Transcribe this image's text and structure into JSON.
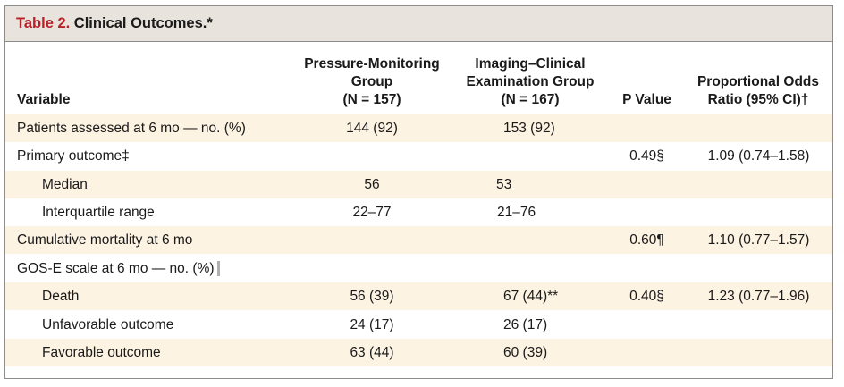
{
  "table": {
    "title_number": "Table 2.",
    "title_text": " Clinical Outcomes.*",
    "headers": {
      "variable": "Variable",
      "pressure_group_line1": "Pressure-Monitoring",
      "pressure_group_line2": "Group",
      "pressure_group_line3": "(N = 157)",
      "imaging_group_line1": "Imaging–Clinical",
      "imaging_group_line2": "Examination Group",
      "imaging_group_line3": "(N = 167)",
      "p_value": "P Value",
      "odds_line1": "Proportional Odds",
      "odds_line2": "Ratio (95% CI)†"
    },
    "rows": [
      {
        "label": "Patients assessed at 6 mo — no. (%)",
        "pressure": "144 (92)",
        "imaging": "153 (92)",
        "p": "",
        "odds": ""
      },
      {
        "label": "Primary outcome‡",
        "pressure": "",
        "imaging": "",
        "p": "0.49§",
        "odds": "1.09 (0.74–1.58)"
      },
      {
        "label": "Median",
        "pressure": "56",
        "imaging": "53",
        "p": "",
        "odds": ""
      },
      {
        "label": "Interquartile range",
        "pressure": "22–77",
        "imaging": "21–76",
        "p": "",
        "odds": ""
      },
      {
        "label": "Cumulative mortality at 6 mo",
        "pressure": "",
        "imaging": "",
        "p": "0.60¶",
        "odds": "1.10 (0.77–1.57)"
      },
      {
        "label": "GOS-E scale at 6 mo — no. (%)",
        "pressure": "",
        "imaging": "",
        "p": "",
        "odds": ""
      },
      {
        "label": "Death",
        "pressure": "56 (39)",
        "imaging": "67 (44)**",
        "p": "0.40§",
        "odds": "1.23 (0.77–1.96)"
      },
      {
        "label": "Unfavorable outcome",
        "pressure": "24 (17)",
        "imaging": "26 (17)",
        "p": "",
        "odds": ""
      },
      {
        "label": "Favorable outcome",
        "pressure": "63 (44)",
        "imaging": "60 (39)",
        "p": "",
        "odds": ""
      }
    ]
  }
}
